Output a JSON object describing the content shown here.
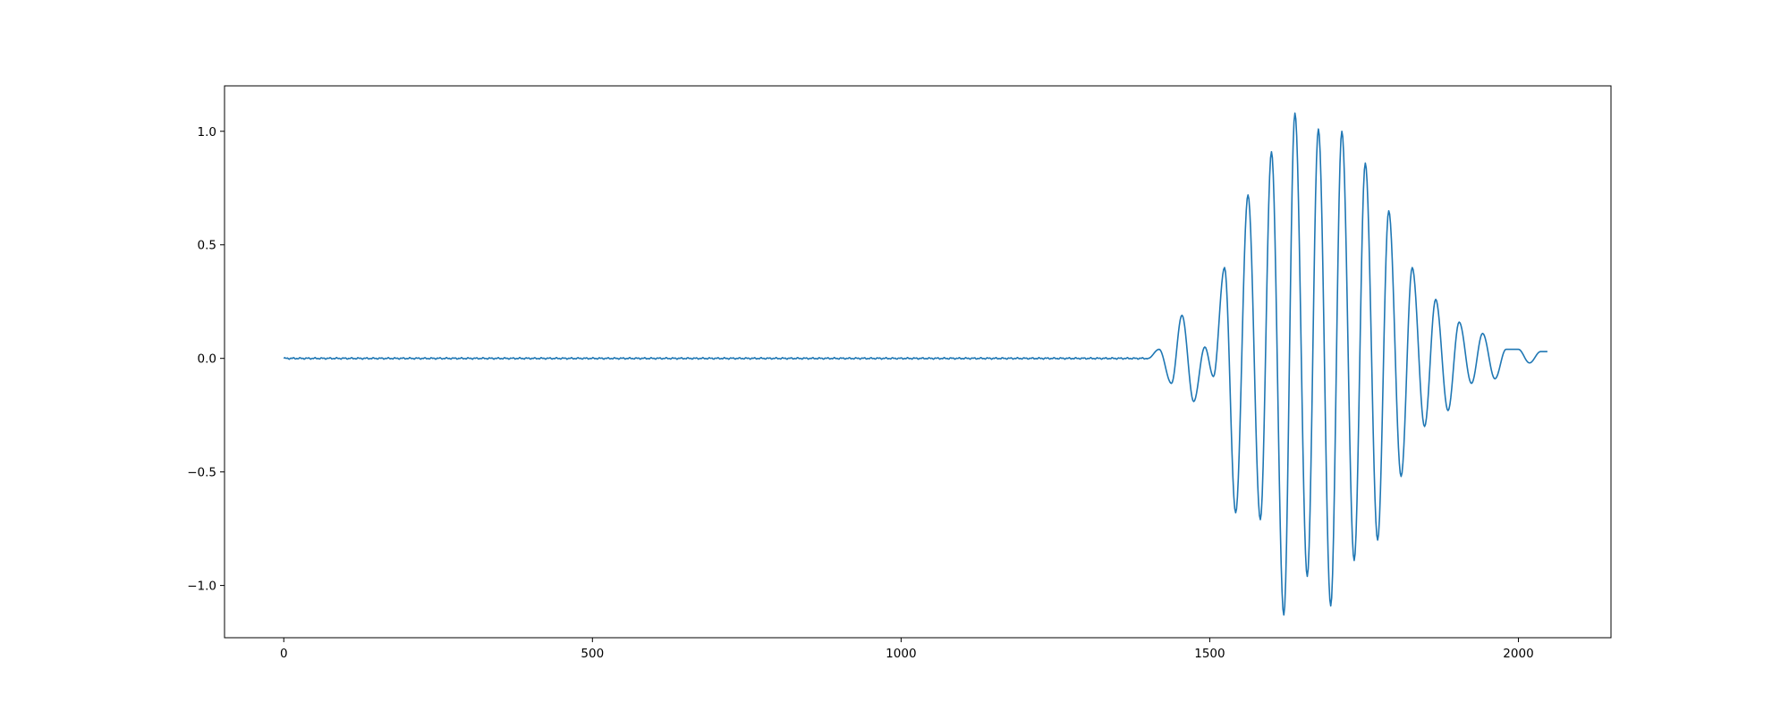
{
  "chart_data": {
    "type": "line",
    "title": "",
    "xlabel": "",
    "ylabel": "",
    "xlim": [
      -96,
      2150
    ],
    "ylim": [
      -1.23,
      1.2
    ],
    "grid": false,
    "legend": "none",
    "x_ticks": [
      0,
      500,
      1000,
      1500,
      2000
    ],
    "x_tick_labels": [
      "0",
      "500",
      "1000",
      "1500",
      "2000"
    ],
    "y_ticks": [
      1.0,
      0.5,
      0.0,
      -0.5,
      -1.0
    ],
    "y_tick_labels": [
      "1.0",
      "0.5",
      "0.0",
      "−0.5",
      "−1.0"
    ],
    "line_color": "#1f77b4",
    "series": [
      {
        "points": [
          [
            0,
            0.0
          ],
          [
            1400,
            0.0
          ],
          [
            1418,
            0.04
          ],
          [
            1438,
            -0.11
          ],
          [
            1455,
            0.19
          ],
          [
            1474,
            -0.19
          ],
          [
            1492,
            0.05
          ],
          [
            1506,
            -0.08
          ],
          [
            1524,
            0.4
          ],
          [
            1542,
            -0.68
          ],
          [
            1562,
            0.72
          ],
          [
            1582,
            -0.71
          ],
          [
            1600,
            0.91
          ],
          [
            1620,
            -1.13
          ],
          [
            1638,
            1.08
          ],
          [
            1658,
            -0.96
          ],
          [
            1676,
            1.01
          ],
          [
            1696,
            -1.09
          ],
          [
            1714,
            1.0
          ],
          [
            1734,
            -0.89
          ],
          [
            1752,
            0.86
          ],
          [
            1772,
            -0.8
          ],
          [
            1790,
            0.65
          ],
          [
            1810,
            -0.52
          ],
          [
            1828,
            0.4
          ],
          [
            1848,
            -0.3
          ],
          [
            1866,
            0.26
          ],
          [
            1886,
            -0.23
          ],
          [
            1904,
            0.16
          ],
          [
            1924,
            -0.11
          ],
          [
            1942,
            0.11
          ],
          [
            1962,
            -0.09
          ],
          [
            1980,
            0.04
          ],
          [
            2000,
            0.04
          ],
          [
            2018,
            -0.02
          ],
          [
            2036,
            0.03
          ],
          [
            2047,
            0.03
          ]
        ]
      }
    ]
  }
}
